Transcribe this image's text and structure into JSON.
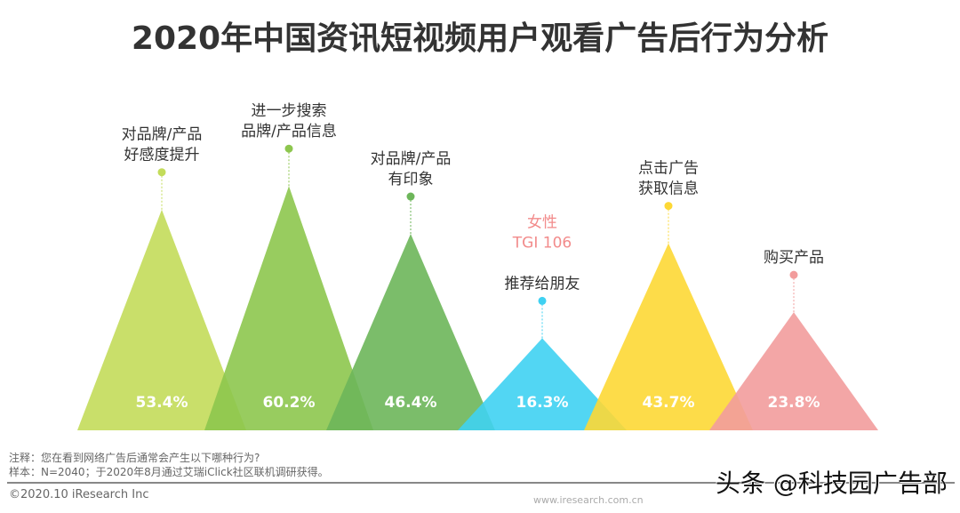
{
  "chart_data": {
    "type": "triangle-bar",
    "title": "2020年中国资讯短视频用户观看广告后行为分析",
    "categories": [
      "对品牌/产品\n好感度提升",
      "进一步搜索\n品牌/产品信息",
      "对品牌/产品\n有印象",
      "推荐给朋友",
      "点击广告\n获取信息",
      "购买产品"
    ],
    "values": [
      53.4,
      60.2,
      46.4,
      16.3,
      43.7,
      23.8
    ],
    "value_labels": [
      "53.4%",
      "60.2%",
      "46.4%",
      "16.3%",
      "43.7%",
      "23.8%"
    ],
    "colors": [
      "#c3dc5a",
      "#8dc64e",
      "#6db65a",
      "#3fd1f2",
      "#fdd835",
      "#f29c9c"
    ],
    "annotation": {
      "category_index": 3,
      "text": [
        "女性",
        "TGI 106"
      ],
      "color": "#f28b8b"
    }
  },
  "footer": {
    "note": "注释：您在看到网络广告后通常会产生以下哪种行为?",
    "sample": "样本：N=2040；于2020年8月通过艾瑞iClick社区联机调研获得。",
    "copyright": "©2020.10 iResearch Inc",
    "watermark": "头条 @科技园广告部",
    "website": "www.iresearch.com.cn"
  }
}
